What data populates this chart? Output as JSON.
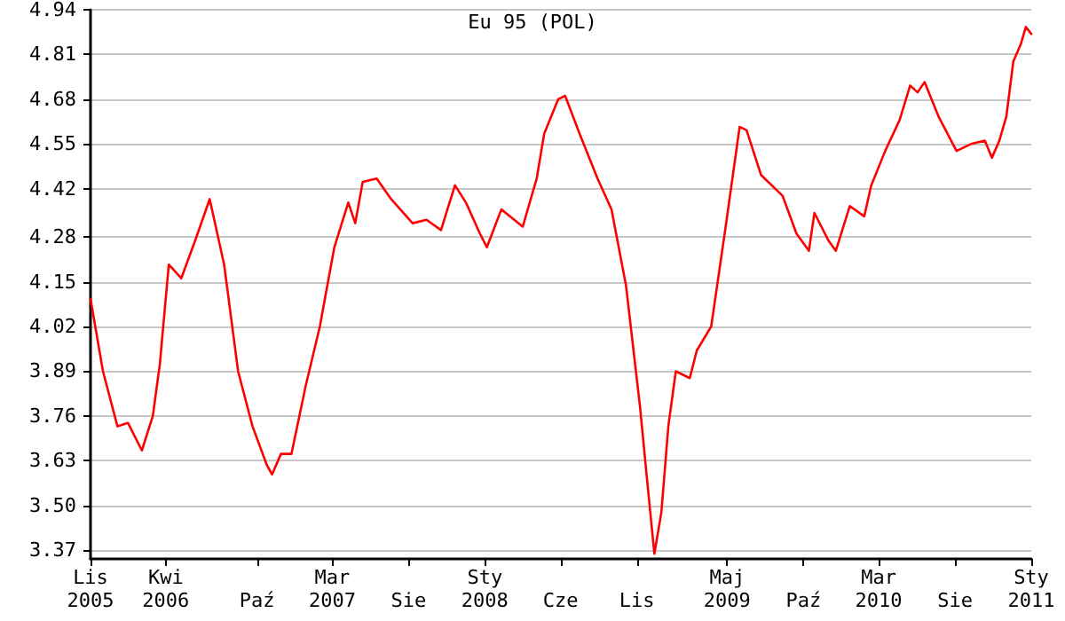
{
  "chart_data": {
    "type": "line",
    "title": "Eu 95 (POL)",
    "color": "#ff0000",
    "grid": "y",
    "marker": "none",
    "line_style": "solid",
    "x": [
      "2005-11-01",
      "2005-11-26",
      "2005-12-25",
      "2006-01-15",
      "2006-02-12",
      "2006-03-06",
      "2006-03-20",
      "2006-04-07",
      "2006-05-02",
      "2006-05-30",
      "2006-06-28",
      "2006-07-27",
      "2006-08-24",
      "2006-09-22",
      "2006-10-20",
      "2006-10-31",
      "2006-11-18",
      "2006-12-09",
      "2007-01-07",
      "2007-02-04",
      "2007-03-05",
      "2007-04-02",
      "2007-04-16",
      "2007-05-01",
      "2007-05-29",
      "2007-06-27",
      "2007-08-09",
      "2007-09-06",
      "2007-10-05",
      "2007-11-02",
      "2007-11-24",
      "2007-12-22",
      "2008-01-05",
      "2008-02-03",
      "2008-03-17",
      "2008-04-14",
      "2008-04-29",
      "2008-05-27",
      "2008-06-10",
      "2008-07-09",
      "2008-08-14",
      "2008-09-11",
      "2008-10-10",
      "2008-11-07",
      "2008-11-21",
      "2008-12-06",
      "2008-12-20",
      "2009-01-03",
      "2009-01-18",
      "2009-02-15",
      "2009-03-01",
      "2009-03-30",
      "2009-04-27",
      "2009-05-26",
      "2009-06-09",
      "2009-07-08",
      "2009-08-20",
      "2009-09-17",
      "2009-10-12",
      "2009-10-23",
      "2009-11-20",
      "2009-12-05",
      "2010-01-02",
      "2010-01-31",
      "2010-02-14",
      "2010-03-14",
      "2010-04-12",
      "2010-05-03",
      "2010-05-18",
      "2010-06-01",
      "2010-06-29",
      "2010-08-04",
      "2010-09-02",
      "2010-09-30",
      "2010-10-14",
      "2010-10-29",
      "2010-11-12",
      "2010-11-26",
      "2010-12-11",
      "2010-12-21",
      "2011-01-01"
    ],
    "values": [
      4.1,
      3.89,
      3.73,
      3.74,
      3.66,
      3.76,
      3.91,
      4.2,
      4.16,
      4.27,
      4.39,
      4.2,
      3.89,
      3.73,
      3.62,
      3.59,
      3.65,
      3.65,
      3.85,
      4.02,
      4.25,
      4.38,
      4.32,
      4.44,
      4.45,
      4.39,
      4.32,
      4.33,
      4.3,
      4.43,
      4.38,
      4.29,
      4.25,
      4.36,
      4.31,
      4.45,
      4.58,
      4.68,
      4.69,
      4.58,
      4.45,
      4.36,
      4.14,
      3.79,
      3.58,
      3.36,
      3.48,
      3.73,
      3.89,
      3.87,
      3.95,
      4.02,
      4.3,
      4.6,
      4.59,
      4.46,
      4.4,
      4.29,
      4.24,
      4.35,
      4.27,
      4.24,
      4.37,
      4.34,
      4.43,
      4.53,
      4.62,
      4.72,
      4.7,
      4.73,
      4.63,
      4.53,
      4.55,
      4.56,
      4.51,
      4.56,
      4.63,
      4.79,
      4.84,
      4.89,
      4.87
    ],
    "xlim": [
      "2005-11-01",
      "2011-01-01"
    ],
    "xticks": [
      {
        "value": "2005-11-01",
        "label": "Lis 2005"
      },
      {
        "value": "2006-04-01",
        "label": "Kwi 2006"
      },
      {
        "value": "2006-10-01",
        "label": "Paź"
      },
      {
        "value": "2007-03-01",
        "label": "Mar 2007"
      },
      {
        "value": "2007-08-01",
        "label": "Sie"
      },
      {
        "value": "2008-01-01",
        "label": "Sty 2008"
      },
      {
        "value": "2008-06-01",
        "label": "Cze"
      },
      {
        "value": "2008-11-01",
        "label": "Lis"
      },
      {
        "value": "2009-05-01",
        "label": "Maj 2009"
      },
      {
        "value": "2009-10-01",
        "label": "Paź"
      },
      {
        "value": "2010-03-01",
        "label": "Mar 2010"
      },
      {
        "value": "2010-08-01",
        "label": "Sie"
      },
      {
        "value": "2011-01-01",
        "label": "Sty 2011"
      }
    ],
    "ylim": [
      3.345,
      4.94
    ],
    "yticks": [
      3.37,
      {
        "value": 3.5,
        "label": "3.50"
      },
      3.63,
      3.76,
      3.89,
      4.02,
      4.15,
      4.28,
      4.42,
      4.55,
      4.68,
      4.81,
      4.94
    ]
  }
}
